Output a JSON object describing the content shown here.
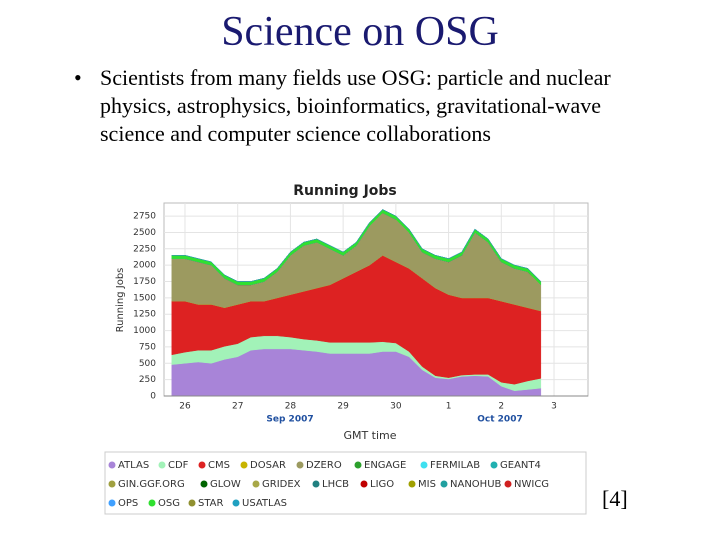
{
  "slide": {
    "title": "Science on OSG",
    "bullet": "Scientists from many fields use OSG: particle and nuclear physics, astrophysics, bioinformatics, gravitational-wave science and computer science collaborations",
    "citation": "[4]"
  },
  "chart_data": {
    "type": "stacked-area",
    "title": "Running Jobs",
    "y_label": "Running Jobs",
    "x_label": "GMT time",
    "month_labels": [
      "Sep 2007",
      "Oct 2007"
    ],
    "categories": [
      null,
      "26",
      null,
      null,
      null,
      "27",
      null,
      null,
      null,
      "28",
      null,
      null,
      null,
      "29",
      null,
      null,
      null,
      "30",
      null,
      null,
      null,
      "1",
      null,
      null,
      null,
      "2",
      null,
      null,
      null,
      "3"
    ],
    "ylim": [
      0,
      2950
    ],
    "yticks": [
      0,
      250,
      500,
      750,
      1000,
      1250,
      1500,
      1750,
      2000,
      2250,
      2500,
      2750
    ],
    "grid": true,
    "series": [
      {
        "name": "ATLAS",
        "color": "#a884d8",
        "values": [
          480,
          500,
          520,
          500,
          560,
          600,
          700,
          720,
          720,
          720,
          700,
          680,
          650,
          650,
          650,
          650,
          680,
          680,
          600,
          400,
          280,
          260,
          300,
          310,
          300,
          150,
          80,
          100,
          120,
          null
        ]
      },
      {
        "name": "CDF",
        "color": "#a2f2b8",
        "values": [
          150,
          170,
          180,
          200,
          200,
          200,
          200,
          200,
          200,
          180,
          170,
          170,
          170,
          170,
          170,
          170,
          150,
          130,
          80,
          50,
          30,
          20,
          20,
          20,
          30,
          60,
          100,
          130,
          150,
          null
        ]
      },
      {
        "name": "CMS",
        "color": "#dd2222",
        "values": [
          820,
          780,
          700,
          700,
          590,
          600,
          550,
          530,
          580,
          650,
          730,
          800,
          880,
          980,
          1080,
          1180,
          1320,
          1240,
          1270,
          1350,
          1340,
          1270,
          1180,
          1170,
          1170,
          1240,
          1220,
          1120,
          1030,
          null
        ]
      },
      {
        "name": "DOSAR",
        "color": "#c8b400",
        "values": [
          0,
          0,
          0,
          0,
          0,
          0,
          0,
          0,
          0,
          0,
          0,
          0,
          0,
          0,
          0,
          0,
          0,
          0,
          0,
          0,
          0,
          0,
          0,
          0,
          0,
          0,
          0,
          0,
          0,
          null
        ]
      },
      {
        "name": "DZERO",
        "color": "#9c9a60",
        "values": [
          650,
          650,
          650,
          600,
          450,
          300,
          250,
          300,
          400,
          600,
          700,
          700,
          550,
          350,
          400,
          600,
          650,
          650,
          550,
          400,
          450,
          500,
          650,
          1000,
          850,
          600,
          550,
          550,
          400,
          null
        ]
      },
      {
        "name": "ENGAGE",
        "color": "#2ca02c",
        "values": [
          0,
          0,
          0,
          0,
          0,
          0,
          0,
          0,
          0,
          0,
          0,
          0,
          0,
          0,
          0,
          0,
          0,
          0,
          0,
          0,
          0,
          0,
          0,
          0,
          0,
          0,
          0,
          0,
          0,
          null
        ]
      },
      {
        "name": "FERMILAB",
        "color": "#3ee0f0",
        "values": [
          0,
          0,
          0,
          0,
          0,
          0,
          0,
          0,
          0,
          0,
          0,
          0,
          0,
          0,
          0,
          0,
          0,
          0,
          0,
          0,
          0,
          0,
          0,
          0,
          0,
          0,
          0,
          0,
          0,
          null
        ]
      },
      {
        "name": "GEANT4",
        "color": "#20b0b0",
        "values": [
          0,
          0,
          0,
          0,
          0,
          0,
          0,
          0,
          0,
          0,
          0,
          0,
          0,
          0,
          0,
          0,
          0,
          0,
          0,
          0,
          0,
          0,
          0,
          0,
          0,
          0,
          0,
          0,
          0,
          null
        ]
      },
      {
        "name": "GIN.GGF.ORG",
        "color": "#a0a040",
        "values": [
          0,
          0,
          0,
          0,
          0,
          0,
          0,
          0,
          0,
          0,
          0,
          0,
          0,
          0,
          0,
          0,
          0,
          0,
          0,
          0,
          0,
          0,
          0,
          0,
          0,
          0,
          0,
          0,
          0,
          null
        ]
      },
      {
        "name": "GLOW",
        "color": "#006400",
        "values": [
          0,
          0,
          0,
          0,
          0,
          0,
          0,
          0,
          0,
          0,
          0,
          0,
          0,
          0,
          0,
          0,
          0,
          0,
          0,
          0,
          0,
          0,
          0,
          0,
          0,
          0,
          0,
          0,
          0,
          null
        ]
      },
      {
        "name": "GRIDEX",
        "color": "#a8a848",
        "values": [
          0,
          0,
          0,
          0,
          0,
          0,
          0,
          0,
          0,
          0,
          0,
          0,
          0,
          0,
          0,
          0,
          0,
          0,
          0,
          0,
          0,
          0,
          0,
          0,
          0,
          0,
          0,
          0,
          0,
          null
        ]
      },
      {
        "name": "LHCB",
        "color": "#208080",
        "values": [
          0,
          0,
          0,
          0,
          0,
          0,
          0,
          0,
          0,
          0,
          0,
          0,
          0,
          0,
          0,
          0,
          0,
          0,
          0,
          0,
          0,
          0,
          0,
          0,
          0,
          0,
          0,
          0,
          0,
          null
        ]
      },
      {
        "name": "LIGO",
        "color": "#c00000",
        "values": [
          0,
          0,
          0,
          0,
          0,
          0,
          0,
          0,
          0,
          0,
          0,
          0,
          0,
          0,
          0,
          0,
          0,
          0,
          0,
          0,
          0,
          0,
          0,
          0,
          0,
          0,
          0,
          0,
          0,
          null
        ]
      },
      {
        "name": "MIS",
        "color": "#a0a000",
        "values": [
          0,
          0,
          0,
          0,
          0,
          0,
          0,
          0,
          0,
          0,
          0,
          0,
          0,
          0,
          0,
          0,
          0,
          0,
          0,
          0,
          0,
          0,
          0,
          0,
          0,
          0,
          0,
          0,
          0,
          null
        ]
      },
      {
        "name": "NANOHUB",
        "color": "#20a0a0",
        "values": [
          0,
          0,
          0,
          0,
          0,
          0,
          0,
          0,
          0,
          0,
          0,
          0,
          0,
          0,
          0,
          0,
          0,
          0,
          0,
          0,
          0,
          0,
          0,
          0,
          0,
          0,
          0,
          0,
          0,
          null
        ]
      },
      {
        "name": "NWICG",
        "color": "#d02020",
        "values": [
          0,
          0,
          0,
          0,
          0,
          0,
          0,
          0,
          0,
          0,
          0,
          0,
          0,
          0,
          0,
          0,
          0,
          0,
          0,
          0,
          0,
          0,
          0,
          0,
          0,
          0,
          0,
          0,
          0,
          null
        ]
      },
      {
        "name": "OPS",
        "color": "#40a0ff",
        "values": [
          0,
          0,
          0,
          0,
          0,
          0,
          0,
          0,
          0,
          0,
          0,
          0,
          0,
          0,
          0,
          0,
          0,
          0,
          0,
          0,
          0,
          0,
          0,
          0,
          0,
          0,
          0,
          0,
          0,
          null
        ]
      },
      {
        "name": "OSG",
        "color": "#30e030",
        "values": [
          50,
          50,
          50,
          50,
          50,
          50,
          50,
          50,
          50,
          50,
          50,
          50,
          50,
          50,
          50,
          50,
          50,
          50,
          50,
          50,
          50,
          50,
          50,
          50,
          50,
          50,
          50,
          50,
          50,
          null
        ]
      },
      {
        "name": "STAR",
        "color": "#909030",
        "values": [
          0,
          0,
          0,
          0,
          0,
          0,
          0,
          0,
          0,
          0,
          0,
          0,
          0,
          0,
          0,
          0,
          0,
          0,
          0,
          0,
          0,
          0,
          0,
          0,
          0,
          0,
          0,
          0,
          0,
          null
        ]
      },
      {
        "name": "USATLAS",
        "color": "#20a0c0",
        "values": [
          0,
          0,
          0,
          0,
          0,
          0,
          0,
          0,
          0,
          0,
          0,
          0,
          0,
          0,
          0,
          0,
          0,
          0,
          0,
          0,
          0,
          0,
          0,
          0,
          0,
          0,
          0,
          0,
          0,
          null
        ]
      }
    ]
  }
}
